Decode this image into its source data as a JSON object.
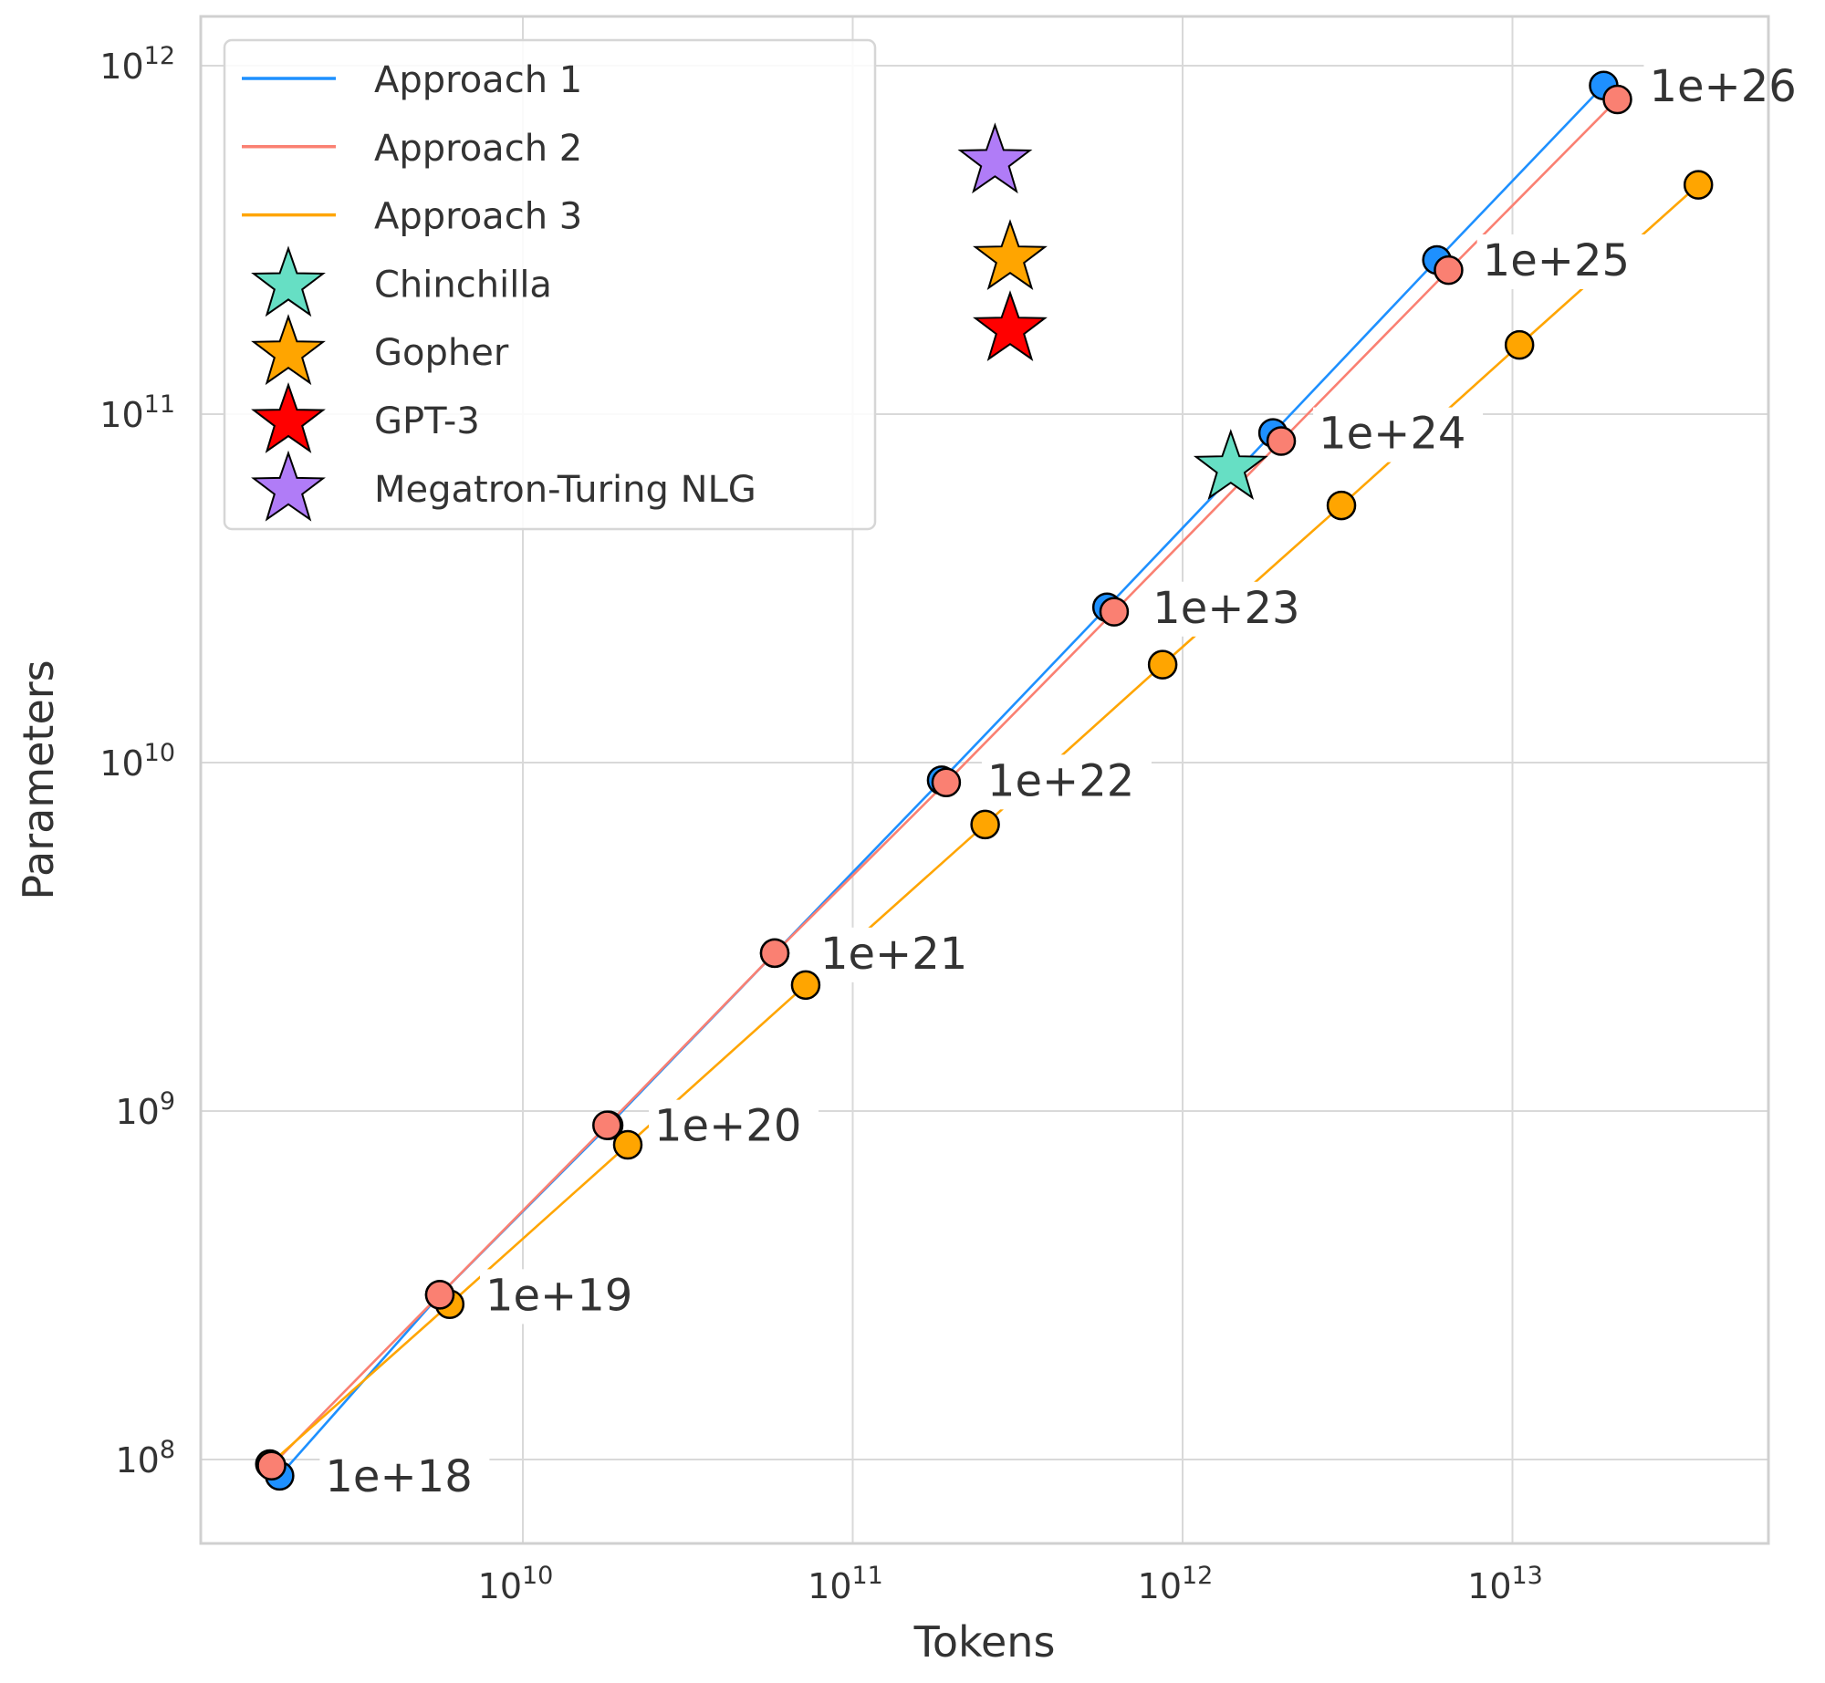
{
  "chart_data": {
    "type": "line",
    "title": "",
    "xlabel": "Tokens",
    "ylabel": "Parameters",
    "xscale": "log",
    "yscale": "log",
    "xlim": [
      1000000000.0,
      70000000000000.0
    ],
    "ylim": [
      58000000.0,
      1450000000000.0
    ],
    "xticks": [
      {
        "value": 10000000000.0,
        "base": "10",
        "exp": "10"
      },
      {
        "value": 100000000000.0,
        "base": "10",
        "exp": "11"
      },
      {
        "value": 1000000000000.0,
        "base": "10",
        "exp": "12"
      },
      {
        "value": 10000000000000.0,
        "base": "10",
        "exp": "13"
      }
    ],
    "yticks": [
      {
        "value": 100000000.0,
        "base": "10",
        "exp": "8"
      },
      {
        "value": 1000000000.0,
        "base": "10",
        "exp": "9"
      },
      {
        "value": 10000000000.0,
        "base": "10",
        "exp": "10"
      },
      {
        "value": 100000000000.0,
        "base": "10",
        "exp": "11"
      },
      {
        "value": 1000000000000.0,
        "base": "10",
        "exp": "12"
      }
    ],
    "grid": true,
    "legend_position": "top-left",
    "compute_labels": [
      "1e+18",
      "1e+19",
      "1e+20",
      "1e+21",
      "1e+22",
      "1e+23",
      "1e+24",
      "1e+25",
      "1e+26"
    ],
    "series": [
      {
        "name": "Approach 1",
        "color": "#1e90ff",
        "x": [
          1830000000.0,
          5600000000.0,
          18200000000.0,
          58000000000.0,
          186000000000.0,
          590000000000.0,
          1880000000000.0,
          5900000000000.0,
          18900000000000.0
        ],
        "y": [
          89800000.0,
          297000000.0,
          910000000.0,
          2840000000.0,
          8900000000.0,
          27900000000.0,
          88300000000.0,
          277000000000.0,
          877000000000.0
        ]
      },
      {
        "name": "Approach 2",
        "color": "#fa8072",
        "x": [
          1730000000.0,
          5600000000.0,
          18000000000.0,
          58000000000.0,
          192000000000.0,
          620000000000.0,
          1990000000000.0,
          6400000000000.0,
          20800000000000.0
        ],
        "y": [
          96000000.0,
          297000000.0,
          910000000.0,
          2840000000.0,
          8770000000.0,
          27100000000.0,
          83700000000.0,
          259000000000.0,
          800000000000.0
        ]
      },
      {
        "name": "Approach 3",
        "color": "#ffa500",
        "x": [
          1710000000.0,
          6000000000.0,
          20800000000.0,
          72000000000.0,
          252000000000.0,
          870000000000.0,
          3030000000000.0,
          10500000000000.0,
          36600000000000.0
        ],
        "y": [
          97000000.0,
          279000000.0,
          800000000.0,
          2300000000.0,
          6640000000.0,
          19100000000.0,
          54700000000.0,
          158000000000.0,
          455000000000.0
        ]
      }
    ],
    "models": [
      {
        "name": "Chinchilla",
        "color": "#66dfc4",
        "tokens": 1400000000000.0,
        "params": 70000000000.0
      },
      {
        "name": "Gopher",
        "color": "#ffa500",
        "tokens": 300000000000.0,
        "params": 280000000000.0
      },
      {
        "name": "GPT-3",
        "color": "#ff0000",
        "tokens": 300000000000.0,
        "params": 175000000000.0
      },
      {
        "name": "Megatron-Turing NLG",
        "color": "#b07cf7",
        "tokens": 270000000000.0,
        "params": 530000000000.0
      }
    ]
  }
}
